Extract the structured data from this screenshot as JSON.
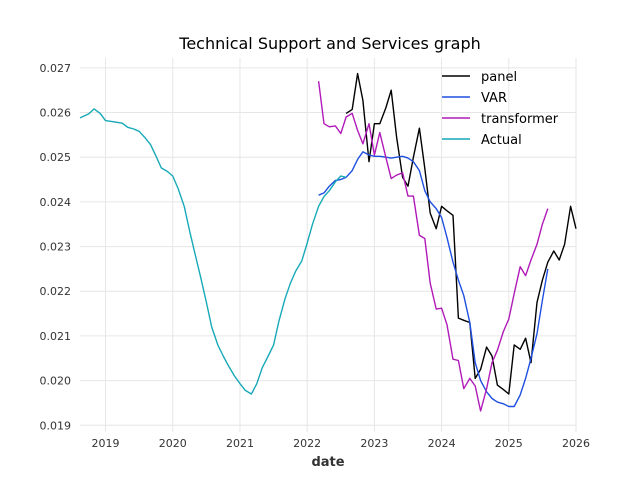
{
  "chart_data": {
    "type": "line",
    "title": "Technical Support and Services graph",
    "xlabel": "date",
    "ylabel": "",
    "xlim": [
      2018.62,
      2026.0
    ],
    "ylim": [
      0.01885,
      0.02722
    ],
    "x_ticks": [
      2019,
      2020,
      2021,
      2022,
      2023,
      2024,
      2025,
      2026
    ],
    "x_tick_labels": [
      "2019",
      "2020",
      "2021",
      "2022",
      "2023",
      "2024",
      "2025",
      "2026"
    ],
    "y_ticks": [
      0.019,
      0.02,
      0.021,
      0.022,
      0.023,
      0.024,
      0.025,
      0.026,
      0.027
    ],
    "y_tick_labels": [
      "0.019",
      "0.020",
      "0.021",
      "0.022",
      "0.023",
      "0.024",
      "0.025",
      "0.026",
      "0.027"
    ],
    "grid": true,
    "legend_position": "top-right",
    "series": [
      {
        "name": "panel",
        "color": "#000000",
        "points": [
          [
            2022.58,
            0.02598
          ],
          [
            2022.67,
            0.02607
          ],
          [
            2022.75,
            0.02687
          ],
          [
            2022.83,
            0.02627
          ],
          [
            2022.92,
            0.0249
          ],
          [
            2023.0,
            0.02575
          ],
          [
            2023.08,
            0.02575
          ],
          [
            2023.17,
            0.0261
          ],
          [
            2023.25,
            0.0265
          ],
          [
            2023.33,
            0.02545
          ],
          [
            2023.42,
            0.02455
          ],
          [
            2023.5,
            0.02435
          ],
          [
            2023.58,
            0.025
          ],
          [
            2023.67,
            0.02565
          ],
          [
            2023.75,
            0.02475
          ],
          [
            2023.83,
            0.02375
          ],
          [
            2023.92,
            0.0234
          ],
          [
            2024.0,
            0.0239
          ],
          [
            2024.08,
            0.0238
          ],
          [
            2024.17,
            0.0237
          ],
          [
            2024.25,
            0.0214
          ],
          [
            2024.33,
            0.02135
          ],
          [
            2024.42,
            0.0213
          ],
          [
            2024.5,
            0.02005
          ],
          [
            2024.58,
            0.02025
          ],
          [
            2024.67,
            0.02075
          ],
          [
            2024.75,
            0.02055
          ],
          [
            2024.83,
            0.0199
          ],
          [
            2024.92,
            0.0198
          ],
          [
            2025.0,
            0.0197
          ],
          [
            2025.08,
            0.0208
          ],
          [
            2025.17,
            0.0207
          ],
          [
            2025.25,
            0.02095
          ],
          [
            2025.33,
            0.0204
          ],
          [
            2025.42,
            0.02175
          ],
          [
            2025.5,
            0.02225
          ],
          [
            2025.58,
            0.02265
          ],
          [
            2025.67,
            0.0229
          ],
          [
            2025.75,
            0.0227
          ],
          [
            2025.83,
            0.02305
          ],
          [
            2025.92,
            0.0239
          ],
          [
            2026.0,
            0.0234
          ]
        ]
      },
      {
        "name": "VAR",
        "color": "#1f4fe0",
        "points": [
          [
            2022.17,
            0.02415
          ],
          [
            2022.25,
            0.0242
          ],
          [
            2022.33,
            0.02435
          ],
          [
            2022.42,
            0.02448
          ],
          [
            2022.5,
            0.0245
          ],
          [
            2022.58,
            0.02455
          ],
          [
            2022.67,
            0.0247
          ],
          [
            2022.75,
            0.02495
          ],
          [
            2022.83,
            0.02512
          ],
          [
            2022.92,
            0.02505
          ],
          [
            2023.0,
            0.02502
          ],
          [
            2023.08,
            0.02502
          ],
          [
            2023.17,
            0.025
          ],
          [
            2023.25,
            0.02498
          ],
          [
            2023.33,
            0.025
          ],
          [
            2023.42,
            0.02502
          ],
          [
            2023.5,
            0.02498
          ],
          [
            2023.58,
            0.0249
          ],
          [
            2023.67,
            0.0247
          ],
          [
            2023.75,
            0.02425
          ],
          [
            2023.83,
            0.024
          ],
          [
            2023.92,
            0.02385
          ],
          [
            2024.0,
            0.02365
          ],
          [
            2024.08,
            0.0232
          ],
          [
            2024.17,
            0.02265
          ],
          [
            2024.25,
            0.02225
          ],
          [
            2024.33,
            0.0219
          ],
          [
            2024.42,
            0.0213
          ],
          [
            2024.5,
            0.0204
          ],
          [
            2024.58,
            0.02
          ],
          [
            2024.67,
            0.01975
          ],
          [
            2024.75,
            0.0196
          ],
          [
            2024.83,
            0.01952
          ],
          [
            2024.92,
            0.01948
          ],
          [
            2025.0,
            0.01942
          ],
          [
            2025.08,
            0.01942
          ],
          [
            2025.17,
            0.01968
          ],
          [
            2025.25,
            0.02005
          ],
          [
            2025.33,
            0.0205
          ],
          [
            2025.42,
            0.02105
          ],
          [
            2025.5,
            0.0218
          ],
          [
            2025.58,
            0.0225
          ]
        ]
      },
      {
        "name": "transformer",
        "color": "#b01ab8",
        "points": [
          [
            2022.17,
            0.0267
          ],
          [
            2022.25,
            0.02575
          ],
          [
            2022.33,
            0.02568
          ],
          [
            2022.42,
            0.0257
          ],
          [
            2022.5,
            0.02553
          ],
          [
            2022.58,
            0.0259
          ],
          [
            2022.67,
            0.02598
          ],
          [
            2022.75,
            0.0256
          ],
          [
            2022.83,
            0.0253
          ],
          [
            2022.92,
            0.02575
          ],
          [
            2023.0,
            0.02505
          ],
          [
            2023.08,
            0.02555
          ],
          [
            2023.17,
            0.025
          ],
          [
            2023.25,
            0.02452
          ],
          [
            2023.33,
            0.0246
          ],
          [
            2023.42,
            0.02465
          ],
          [
            2023.5,
            0.02413
          ],
          [
            2023.58,
            0.02413
          ],
          [
            2023.67,
            0.02325
          ],
          [
            2023.75,
            0.02318
          ],
          [
            2023.83,
            0.02218
          ],
          [
            2023.92,
            0.0216
          ],
          [
            2024.0,
            0.02162
          ],
          [
            2024.08,
            0.02125
          ],
          [
            2024.17,
            0.02048
          ],
          [
            2024.25,
            0.02045
          ],
          [
            2024.33,
            0.01982
          ],
          [
            2024.42,
            0.02005
          ],
          [
            2024.5,
            0.01988
          ],
          [
            2024.58,
            0.01932
          ],
          [
            2024.67,
            0.01982
          ],
          [
            2024.75,
            0.0204
          ],
          [
            2024.83,
            0.02068
          ],
          [
            2024.92,
            0.0211
          ],
          [
            2025.0,
            0.02138
          ],
          [
            2025.08,
            0.02195
          ],
          [
            2025.17,
            0.02255
          ],
          [
            2025.25,
            0.02235
          ],
          [
            2025.33,
            0.0227
          ],
          [
            2025.42,
            0.02305
          ],
          [
            2025.5,
            0.0235
          ],
          [
            2025.58,
            0.02385
          ]
        ]
      },
      {
        "name": "Actual",
        "color": "#17a9b8",
        "points": [
          [
            2018.62,
            0.02588
          ],
          [
            2018.75,
            0.02597
          ],
          [
            2018.83,
            0.02608
          ],
          [
            2018.92,
            0.02598
          ],
          [
            2019.0,
            0.02582
          ],
          [
            2019.17,
            0.02578
          ],
          [
            2019.25,
            0.02576
          ],
          [
            2019.33,
            0.02567
          ],
          [
            2019.42,
            0.02563
          ],
          [
            2019.5,
            0.02558
          ],
          [
            2019.58,
            0.02545
          ],
          [
            2019.67,
            0.02528
          ],
          [
            2019.75,
            0.02503
          ],
          [
            2019.83,
            0.02476
          ],
          [
            2019.92,
            0.02468
          ],
          [
            2020.0,
            0.02458
          ],
          [
            2020.08,
            0.0243
          ],
          [
            2020.17,
            0.0239
          ],
          [
            2020.25,
            0.02335
          ],
          [
            2020.33,
            0.02285
          ],
          [
            2020.42,
            0.02228
          ],
          [
            2020.5,
            0.02175
          ],
          [
            2020.58,
            0.0212
          ],
          [
            2020.67,
            0.0208
          ],
          [
            2020.75,
            0.02055
          ],
          [
            2020.83,
            0.02033
          ],
          [
            2020.92,
            0.0201
          ],
          [
            2021.0,
            0.01993
          ],
          [
            2021.08,
            0.01978
          ],
          [
            2021.17,
            0.0197
          ],
          [
            2021.25,
            0.01993
          ],
          [
            2021.33,
            0.02028
          ],
          [
            2021.42,
            0.02055
          ],
          [
            2021.5,
            0.0208
          ],
          [
            2021.58,
            0.02133
          ],
          [
            2021.67,
            0.02183
          ],
          [
            2021.75,
            0.02218
          ],
          [
            2021.83,
            0.02245
          ],
          [
            2021.92,
            0.02268
          ],
          [
            2022.0,
            0.02308
          ],
          [
            2022.08,
            0.0235
          ],
          [
            2022.17,
            0.0239
          ],
          [
            2022.25,
            0.02412
          ],
          [
            2022.33,
            0.02425
          ],
          [
            2022.42,
            0.02445
          ],
          [
            2022.5,
            0.02458
          ],
          [
            2022.58,
            0.02455
          ]
        ]
      }
    ]
  }
}
